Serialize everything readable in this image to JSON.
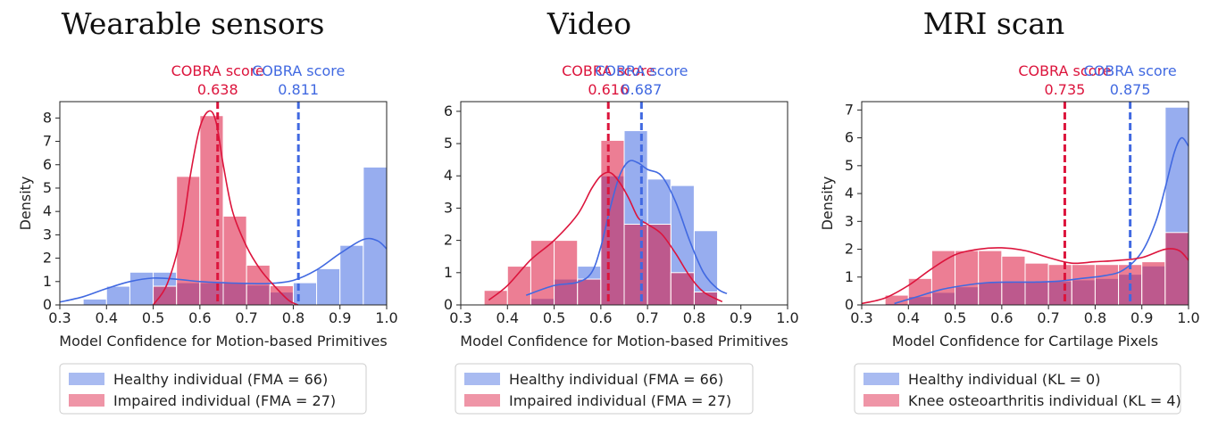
{
  "colors": {
    "healthy": "#4169e1",
    "impaired": "#dc143c",
    "healthy_fill": "#c5d0f1",
    "impaired_fill": "#f2aab6"
  },
  "chart_data": [
    {
      "type": "bar",
      "title": "Wearable sensors",
      "xlabel": "Model Confidence for Motion-based Primitives",
      "ylabel": "Density",
      "xlim": [
        0.3,
        1.0
      ],
      "ylim": [
        0,
        8.7
      ],
      "xticks": [
        "0.3",
        "0.4",
        "0.5",
        "0.6",
        "0.7",
        "0.8",
        "0.9",
        "1.0"
      ],
      "yticks": [
        "0",
        "1",
        "2",
        "3",
        "4",
        "5",
        "6",
        "7",
        "8"
      ],
      "cobra": [
        {
          "label": "COBRA score",
          "value": "0.638",
          "x": 0.638,
          "series": "impaired"
        },
        {
          "label": "COBRA score",
          "value": "0.811",
          "x": 0.811,
          "series": "healthy"
        }
      ],
      "healthy_bins": {
        "edges": [
          0.3,
          0.35,
          0.4,
          0.45,
          0.5,
          0.55,
          0.6,
          0.65,
          0.7,
          0.75,
          0.8,
          0.85,
          0.9,
          0.95,
          1.0
        ],
        "values": [
          0,
          0.25,
          0.8,
          1.4,
          1.4,
          0.95,
          0.95,
          0.95,
          0.85,
          0.55,
          0.95,
          1.55,
          2.55,
          5.9
        ]
      },
      "impaired_bins": {
        "edges": [
          0.5,
          0.55,
          0.6,
          0.65,
          0.7,
          0.75,
          0.8
        ],
        "values": [
          0.8,
          5.5,
          8.1,
          3.8,
          1.7,
          0.82
        ]
      },
      "healthy_kde": {
        "x": [
          0.3,
          0.35,
          0.4,
          0.45,
          0.5,
          0.55,
          0.6,
          0.65,
          0.7,
          0.75,
          0.8,
          0.85,
          0.9,
          0.95,
          0.98,
          1.0
        ],
        "y": [
          0.12,
          0.35,
          0.7,
          1.0,
          1.15,
          1.1,
          1.0,
          0.95,
          0.92,
          0.92,
          1.05,
          1.5,
          2.2,
          2.8,
          2.75,
          2.4
        ]
      },
      "impaired_kde": {
        "x": [
          0.5,
          0.53,
          0.56,
          0.58,
          0.6,
          0.62,
          0.635,
          0.65,
          0.67,
          0.7,
          0.73,
          0.76,
          0.79,
          0.81
        ],
        "y": [
          0.0,
          0.9,
          3.0,
          5.6,
          7.6,
          8.3,
          7.8,
          6.0,
          4.0,
          2.5,
          1.5,
          0.8,
          0.2,
          0.0
        ]
      },
      "legend": [
        "Healthy individual (FMA = 66)",
        "Impaired individual (FMA = 27)"
      ]
    },
    {
      "type": "bar",
      "title": "Video",
      "xlabel": "Model Confidence for Motion-based Primitives",
      "ylabel": "",
      "xlim": [
        0.3,
        1.0
      ],
      "ylim": [
        0,
        6.3
      ],
      "xticks": [
        "0.3",
        "0.4",
        "0.5",
        "0.6",
        "0.7",
        "0.8",
        "0.9",
        "1.0"
      ],
      "yticks": [
        "0",
        "1",
        "2",
        "3",
        "4",
        "5",
        "6"
      ],
      "cobra": [
        {
          "label": "COBRA score",
          "value": "0.616",
          "x": 0.616,
          "series": "impaired"
        },
        {
          "label": "COBRA score",
          "value": "0.687",
          "x": 0.687,
          "series": "healthy"
        }
      ],
      "healthy_bins": {
        "edges": [
          0.4,
          0.45,
          0.5,
          0.55,
          0.6,
          0.65,
          0.7,
          0.75,
          0.8,
          0.85
        ],
        "values": [
          0,
          0.2,
          0.8,
          1.2,
          4.0,
          5.4,
          3.9,
          3.7,
          2.3
        ]
      },
      "impaired_bins": {
        "edges": [
          0.35,
          0.4,
          0.45,
          0.5,
          0.55,
          0.6,
          0.65,
          0.7,
          0.75,
          0.8,
          0.85
        ],
        "values": [
          0.45,
          1.2,
          2.0,
          2.0,
          0.8,
          5.1,
          2.5,
          2.5,
          1.0,
          0.4
        ]
      },
      "healthy_kde": {
        "x": [
          0.44,
          0.5,
          0.55,
          0.58,
          0.6,
          0.62,
          0.64,
          0.66,
          0.68,
          0.7,
          0.73,
          0.76,
          0.79,
          0.82,
          0.85,
          0.87
        ],
        "y": [
          0.3,
          0.6,
          0.7,
          1.0,
          1.8,
          3.0,
          4.0,
          4.45,
          4.4,
          4.2,
          4.0,
          3.2,
          2.0,
          1.0,
          0.5,
          0.35
        ]
      },
      "impaired_kde": {
        "x": [
          0.36,
          0.4,
          0.45,
          0.5,
          0.55,
          0.58,
          0.6,
          0.62,
          0.64,
          0.66,
          0.68,
          0.7,
          0.73,
          0.76,
          0.79,
          0.82,
          0.86
        ],
        "y": [
          0.15,
          0.6,
          1.4,
          2.0,
          2.8,
          3.6,
          4.0,
          4.1,
          3.8,
          3.3,
          2.7,
          2.5,
          2.2,
          1.6,
          0.9,
          0.4,
          0.1
        ]
      },
      "legend": [
        "Healthy individual (FMA = 66)",
        "Impaired individual (FMA = 27)"
      ]
    },
    {
      "type": "bar",
      "title": "MRI scan",
      "xlabel": "Model Confidence for Cartilage Pixels",
      "ylabel": "Density",
      "xlim": [
        0.3,
        1.0
      ],
      "ylim": [
        0,
        7.3
      ],
      "xticks": [
        "0.3",
        "0.4",
        "0.5",
        "0.6",
        "0.7",
        "0.8",
        "0.9",
        "1.0"
      ],
      "yticks": [
        "0",
        "1",
        "2",
        "3",
        "4",
        "5",
        "6",
        "7"
      ],
      "cobra": [
        {
          "label": "COBRA score",
          "value": "0.735",
          "x": 0.735,
          "series": "impaired"
        },
        {
          "label": "COBRA score",
          "value": "0.875",
          "x": 0.875,
          "series": "healthy"
        }
      ],
      "healthy_bins": {
        "edges": [
          0.35,
          0.4,
          0.45,
          0.5,
          0.55,
          0.6,
          0.65,
          0.7,
          0.75,
          0.8,
          0.85,
          0.9,
          0.95,
          1.0
        ],
        "values": [
          0.05,
          0.3,
          0.45,
          0.65,
          0.8,
          0.85,
          0.85,
          0.85,
          0.9,
          0.95,
          1.1,
          1.4,
          7.1
        ]
      },
      "impaired_bins": {
        "edges": [
          0.3,
          0.35,
          0.4,
          0.45,
          0.5,
          0.55,
          0.6,
          0.65,
          0.7,
          0.75,
          0.8,
          0.85,
          0.9,
          0.95,
          1.0
        ],
        "values": [
          0.0,
          0.35,
          0.95,
          1.95,
          1.95,
          1.95,
          1.75,
          1.5,
          1.45,
          1.45,
          1.45,
          1.45,
          1.55,
          2.6
        ]
      },
      "healthy_kde": {
        "x": [
          0.37,
          0.42,
          0.47,
          0.52,
          0.57,
          0.62,
          0.67,
          0.72,
          0.77,
          0.82,
          0.86,
          0.9,
          0.93,
          0.95,
          0.97,
          0.985,
          1.0
        ],
        "y": [
          0.05,
          0.3,
          0.55,
          0.7,
          0.8,
          0.82,
          0.82,
          0.85,
          0.95,
          1.05,
          1.25,
          1.9,
          3.0,
          4.2,
          5.5,
          6.0,
          5.7
        ]
      },
      "impaired_kde": {
        "x": [
          0.3,
          0.35,
          0.4,
          0.45,
          0.5,
          0.55,
          0.6,
          0.65,
          0.7,
          0.75,
          0.8,
          0.85,
          0.9,
          0.95,
          0.98,
          1.0
        ],
        "y": [
          0.05,
          0.25,
          0.7,
          1.3,
          1.8,
          2.0,
          2.05,
          1.95,
          1.7,
          1.5,
          1.55,
          1.6,
          1.7,
          2.0,
          1.95,
          1.6
        ]
      },
      "legend": [
        "Healthy individual (KL = 0)",
        "Knee osteoarthritis individual (KL = 4)"
      ]
    }
  ]
}
